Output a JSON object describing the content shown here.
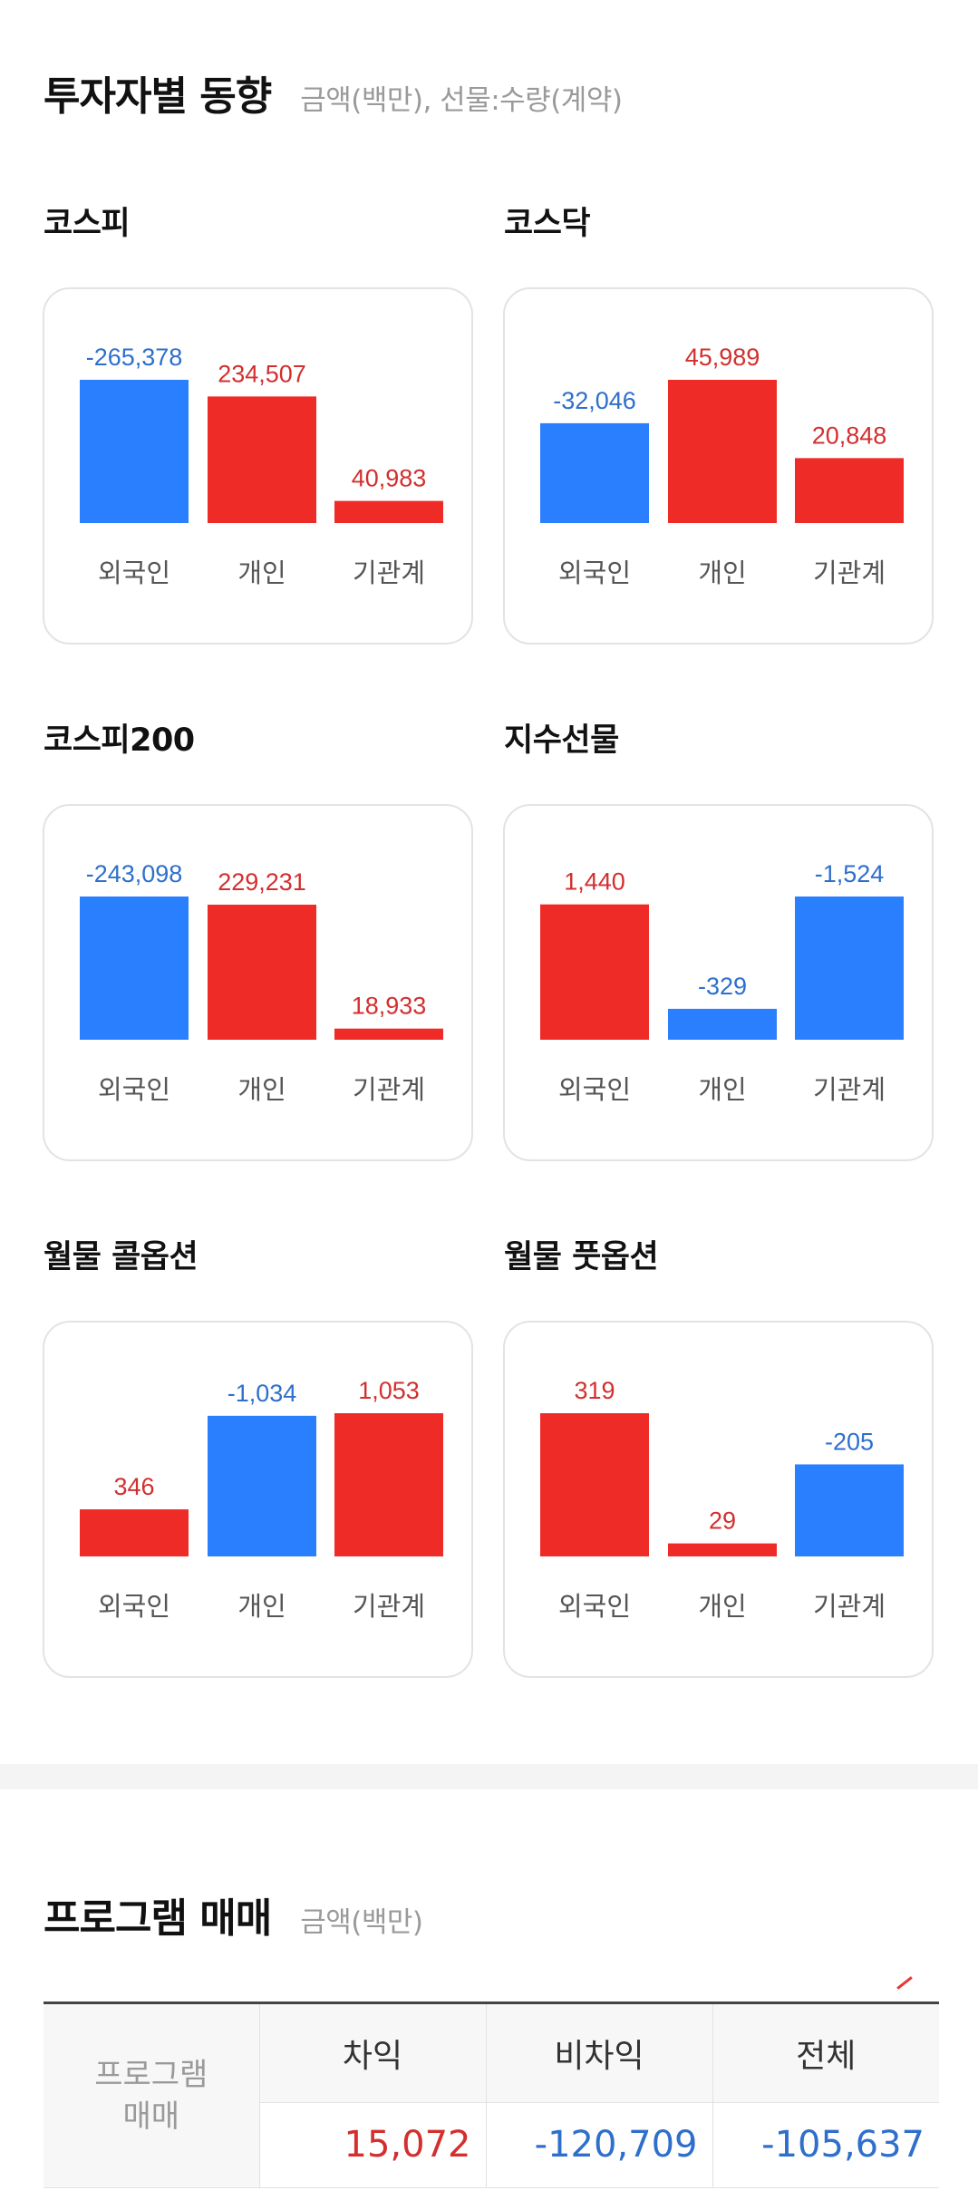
{
  "investor_section": {
    "title": "투자자별 동향",
    "subtitle": "금액(백만), 선물:수량(계약)"
  },
  "colors": {
    "positive": "#ef2b27",
    "negative": "#2a7fff",
    "positive_text": "#d32f2f",
    "negative_text": "#2e6fcc"
  },
  "chart_data": [
    {
      "type": "bar",
      "title": "코스피",
      "categories": [
        "외국인",
        "개인",
        "기관계"
      ],
      "values": [
        -265378,
        234507,
        40983
      ],
      "labels": [
        "-265,378",
        "234,507",
        "40,983"
      ]
    },
    {
      "type": "bar",
      "title": "코스닥",
      "categories": [
        "외국인",
        "개인",
        "기관계"
      ],
      "values": [
        -32046,
        45989,
        20848
      ],
      "labels": [
        "-32,046",
        "45,989",
        "20,848"
      ]
    },
    {
      "type": "bar",
      "title": "코스피200",
      "categories": [
        "외국인",
        "개인",
        "기관계"
      ],
      "values": [
        -243098,
        229231,
        18933
      ],
      "labels": [
        "-243,098",
        "229,231",
        "18,933"
      ]
    },
    {
      "type": "bar",
      "title": "지수선물",
      "categories": [
        "외국인",
        "개인",
        "기관계"
      ],
      "values": [
        1440,
        -329,
        -1524
      ],
      "labels": [
        "1,440",
        "-329",
        "-1,524"
      ]
    },
    {
      "type": "bar",
      "title": "월물 콜옵션",
      "categories": [
        "외국인",
        "개인",
        "기관계"
      ],
      "values": [
        346,
        -1034,
        1053
      ],
      "labels": [
        "346",
        "-1,034",
        "1,053"
      ]
    },
    {
      "type": "bar",
      "title": "월물 풋옵션",
      "categories": [
        "외국인",
        "개인",
        "기관계"
      ],
      "values": [
        319,
        29,
        -205
      ],
      "labels": [
        "319",
        "29",
        "-205"
      ]
    }
  ],
  "program_section": {
    "title": "프로그램 매매",
    "subtitle": "금액(백만)",
    "row_header": "프로그램\n매매",
    "columns": [
      "차익",
      "비차익",
      "전체"
    ],
    "values": [
      "15,072",
      "-120,709",
      "-105,637"
    ]
  }
}
